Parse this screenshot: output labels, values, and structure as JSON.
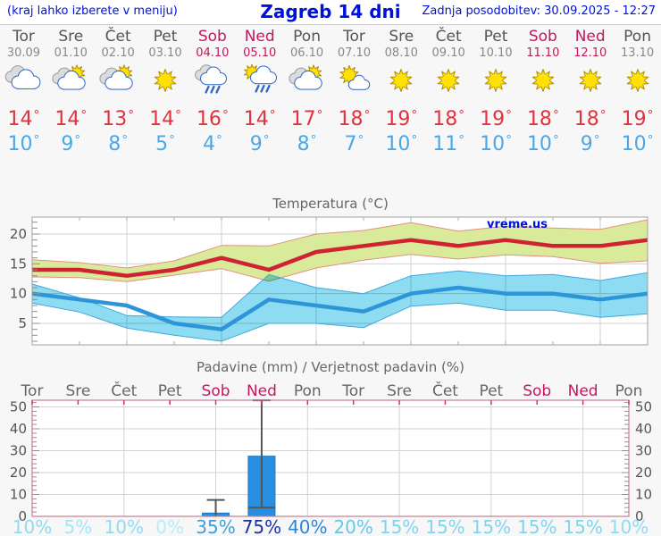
{
  "header": {
    "left_note": "(kraj lahko izberete v meniju)",
    "title": "Zagreb 14 dni",
    "updated": "Zadnja posodobitev: 30.09.2025 - 12:27"
  },
  "units": {
    "degree": "°"
  },
  "colors": {
    "link_blue": "#0010dd",
    "weekend": "#c2185b",
    "weekday": "#555555",
    "date_gray": "#888888",
    "tmax_red": "#e0333f",
    "tmin_blue": "#4aa8e8",
    "max_line": "#cf2333",
    "max_band": "#d9ea9b",
    "max_band_edge": "#e4907e",
    "min_line": "#2e95d8",
    "min_band": "#8ddcf2",
    "min_band_edge": "#3fa8dd",
    "bar_fill": "#2a8ee0",
    "bar_edge": "#1e79c4",
    "whisker": "#555555",
    "grid": "#d2d2d2",
    "frame_temp": "#a0a0a0",
    "frame_precip": "#c97d92",
    "axis_text": "#555555",
    "chart_title": "#666666"
  },
  "days": [
    {
      "name": "Tor",
      "date": "30.09",
      "weekend": false,
      "icon": "cloudy",
      "tmax": 14,
      "tmin": 10,
      "prob": "10%",
      "prob_color": "#8fdbf2"
    },
    {
      "name": "Sre",
      "date": "01.10",
      "weekend": false,
      "icon": "partly-cloudy",
      "tmax": 14,
      "tmin": 9,
      "prob": "5%",
      "prob_color": "#a6e5f6"
    },
    {
      "name": "Čet",
      "date": "02.10",
      "weekend": false,
      "icon": "partly-cloudy",
      "tmax": 13,
      "tmin": 8,
      "prob": "10%",
      "prob_color": "#8fdbf2"
    },
    {
      "name": "Pet",
      "date": "03.10",
      "weekend": false,
      "icon": "sunny",
      "tmax": 14,
      "tmin": 5,
      "prob": "0%",
      "prob_color": "#b6edf9"
    },
    {
      "name": "Sob",
      "date": "04.10",
      "weekend": true,
      "icon": "rain",
      "tmax": 16,
      "tmin": 4,
      "prob": "35%",
      "prob_color": "#3d9fdc"
    },
    {
      "name": "Ned",
      "date": "05.10",
      "weekend": true,
      "icon": "sun-rain",
      "tmax": 14,
      "tmin": 9,
      "prob": "75%",
      "prob_color": "#1d2fa5"
    },
    {
      "name": "Pon",
      "date": "06.10",
      "weekend": false,
      "icon": "partly-cloudy",
      "tmax": 17,
      "tmin": 8,
      "prob": "40%",
      "prob_color": "#2b88d8"
    },
    {
      "name": "Tor",
      "date": "07.10",
      "weekend": false,
      "icon": "mostly-sunny",
      "tmax": 18,
      "tmin": 7,
      "prob": "20%",
      "prob_color": "#63c8ec"
    },
    {
      "name": "Sre",
      "date": "08.10",
      "weekend": false,
      "icon": "sunny",
      "tmax": 19,
      "tmin": 10,
      "prob": "15%",
      "prob_color": "#7ed5f0"
    },
    {
      "name": "Čet",
      "date": "09.10",
      "weekend": false,
      "icon": "sunny",
      "tmax": 18,
      "tmin": 11,
      "prob": "15%",
      "prob_color": "#7ed5f0"
    },
    {
      "name": "Pet",
      "date": "10.10",
      "weekend": false,
      "icon": "sunny",
      "tmax": 19,
      "tmin": 10,
      "prob": "15%",
      "prob_color": "#7ed5f0"
    },
    {
      "name": "Sob",
      "date": "11.10",
      "weekend": true,
      "icon": "sunny",
      "tmax": 18,
      "tmin": 10,
      "prob": "15%",
      "prob_color": "#7ed5f0"
    },
    {
      "name": "Ned",
      "date": "12.10",
      "weekend": true,
      "icon": "sunny",
      "tmax": 18,
      "tmin": 9,
      "prob": "15%",
      "prob_color": "#7ed5f0"
    },
    {
      "name": "Pon",
      "date": "13.10",
      "weekend": false,
      "icon": "sunny",
      "tmax": 19,
      "tmin": 10,
      "prob": "10%",
      "prob_color": "#8fdbf2"
    }
  ],
  "chart_data": [
    {
      "type": "line",
      "title": "Temperatura (°C)",
      "watermark": "vreme.us",
      "yticks": [
        5,
        10,
        15,
        20
      ],
      "ylim": [
        1.5,
        22.8
      ],
      "grid": true,
      "series": [
        {
          "name": "max_temp",
          "values": [
            14,
            14,
            13,
            14,
            16,
            14,
            17,
            18,
            19,
            18,
            19,
            18,
            18,
            19
          ]
        },
        {
          "name": "max_band_upper",
          "values": [
            15.7,
            15.2,
            14.3,
            15.5,
            18.1,
            18.0,
            20.0,
            20.6,
            21.9,
            20.5,
            21.3,
            21.0,
            20.8,
            22.4
          ]
        },
        {
          "name": "max_band_lower",
          "values": [
            12.8,
            12.7,
            12.0,
            13.1,
            14.2,
            12.1,
            14.3,
            15.6,
            16.6,
            15.8,
            16.5,
            16.2,
            15.1,
            15.5
          ]
        },
        {
          "name": "min_temp",
          "values": [
            10,
            9,
            8,
            5,
            4,
            9,
            8,
            7,
            10,
            11,
            10,
            10,
            9,
            10
          ]
        },
        {
          "name": "min_band_upper",
          "values": [
            11.6,
            9.3,
            6.3,
            6.1,
            6.0,
            13.2,
            11.0,
            10.0,
            13.0,
            13.8,
            13.0,
            13.2,
            12.2,
            13.5
          ]
        },
        {
          "name": "min_band_lower",
          "values": [
            8.4,
            6.9,
            4.2,
            3.0,
            2.0,
            5.0,
            5.0,
            4.3,
            7.9,
            8.4,
            7.2,
            7.2,
            6.0,
            6.6
          ]
        }
      ]
    },
    {
      "type": "bar",
      "title": "Padavine (mm) / Verjetnost padavin (%)",
      "categories": [
        "Tor",
        "Sre",
        "Čet",
        "Pet",
        "Sob",
        "Ned",
        "Pon",
        "Tor",
        "Sre",
        "Čet",
        "Pet",
        "Sob",
        "Ned",
        "Pon"
      ],
      "values": [
        0,
        0,
        0,
        0,
        1.5,
        27.5,
        0,
        0,
        0,
        0,
        0,
        0,
        0,
        0
      ],
      "whiskers": [
        {
          "index": 4,
          "low": 0,
          "high": 7.5,
          "low_cap": false
        },
        {
          "index": 5,
          "low": 4,
          "high": 53,
          "low_cap": true
        }
      ],
      "probabilities": [
        "10%",
        "5%",
        "10%",
        "0%",
        "35%",
        "75%",
        "40%",
        "20%",
        "15%",
        "15%",
        "15%",
        "15%",
        "15%",
        "10%"
      ],
      "yticks": [
        0,
        10,
        20,
        30,
        40,
        50
      ],
      "ylim": [
        0,
        53
      ],
      "grid": true
    }
  ]
}
